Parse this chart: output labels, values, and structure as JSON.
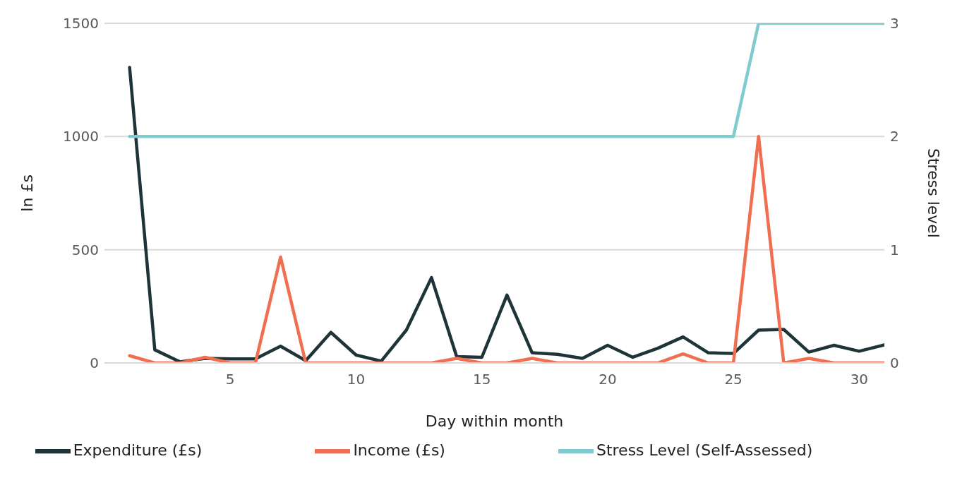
{
  "chart_data": {
    "type": "line",
    "xlabel": "Day within month",
    "ylabel": "In £s",
    "y2label": "Stress level",
    "x": [
      1,
      2,
      3,
      4,
      5,
      6,
      7,
      8,
      9,
      10,
      11,
      12,
      13,
      14,
      15,
      16,
      17,
      18,
      19,
      20,
      21,
      22,
      23,
      24,
      25,
      26,
      27,
      28,
      29,
      30,
      31
    ],
    "series": [
      {
        "name": "Expenditure (£s)",
        "color": "#1e3438",
        "values": [
          1305,
          58,
          5,
          20,
          18,
          18,
          74,
          10,
          135,
          35,
          8,
          145,
          377,
          28,
          25,
          300,
          45,
          38,
          20,
          78,
          25,
          65,
          115,
          45,
          42,
          145,
          148,
          48,
          78,
          52,
          80
        ]
      },
      {
        "name": "Income (£s)",
        "color": "#ef6f50",
        "values": [
          32,
          0,
          0,
          25,
          0,
          0,
          468,
          0,
          0,
          0,
          0,
          0,
          0,
          20,
          0,
          0,
          20,
          0,
          0,
          0,
          0,
          0,
          40,
          0,
          0,
          1000,
          0,
          20,
          0,
          0,
          0
        ]
      },
      {
        "name": "Stress Level (Self-Assessed)",
        "color": "#7ecbd0",
        "axis": "y2",
        "values": [
          2,
          2,
          2,
          2,
          2,
          2,
          2,
          2,
          2,
          2,
          2,
          2,
          2,
          2,
          2,
          2,
          2,
          2,
          2,
          2,
          2,
          2,
          2,
          2,
          2,
          3,
          3,
          3,
          3,
          3,
          3
        ]
      }
    ],
    "xlim": [
      0,
      31
    ],
    "xticks": [
      5,
      10,
      15,
      20,
      25,
      30
    ],
    "ylim": [
      0,
      1500
    ],
    "yticks": [
      0,
      500,
      1000,
      1500
    ],
    "y2lim": [
      0,
      3
    ],
    "y2ticks": [
      0,
      1,
      2,
      3
    ],
    "grid": "y",
    "legend": "bottom"
  }
}
